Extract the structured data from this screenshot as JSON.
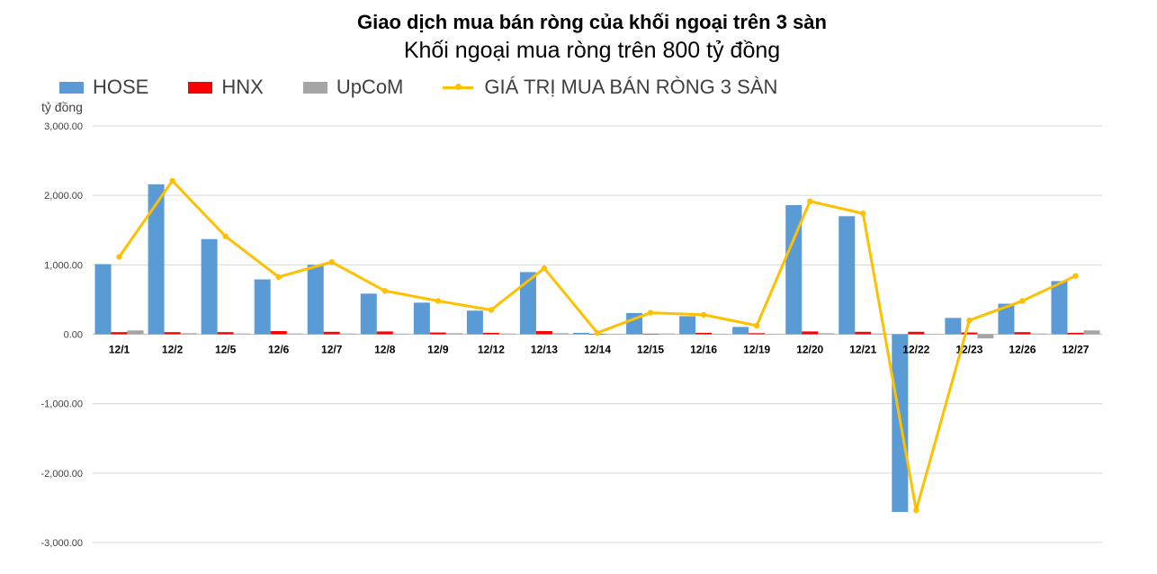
{
  "chart_data": {
    "type": "bar",
    "title": "Giao dịch mua bán ròng của khối ngoại trên 3 sàn",
    "subtitle": "Khối ngoại mua ròng trên 800 tỷ đồng",
    "ylabel": "tỷ đồng",
    "xlabel": "",
    "ylim": [
      -3000,
      3000
    ],
    "ytick_values": [
      3000,
      2000,
      1000,
      0,
      -1000,
      -2000,
      -3000
    ],
    "ytick_labels": [
      "3,000.00",
      "2,000.00",
      "1,000.00",
      "0.00",
      "-1,000.00",
      "-2,000.00",
      "-3,000.00"
    ],
    "grid": true,
    "legend_position": "top-left",
    "categories": [
      "12/1",
      "12/2",
      "12/5",
      "12/6",
      "12/7",
      "12/8",
      "12/9",
      "12/12",
      "12/13",
      "12/14",
      "12/15",
      "12/16",
      "12/19",
      "12/20",
      "12/21",
      "12/22",
      "12/23",
      "12/26",
      "12/27"
    ],
    "series": [
      {
        "name": "HOSE",
        "kind": "bar",
        "color": "#5B9BD5",
        "values": [
          1010,
          2160,
          1370,
          790,
          1000,
          585,
          455,
          340,
          895,
          20,
          305,
          260,
          105,
          1860,
          1700,
          -2560,
          235,
          440,
          765
        ]
      },
      {
        "name": "HNX",
        "kind": "bar",
        "color": "#FF0000",
        "values": [
          30,
          30,
          30,
          45,
          35,
          40,
          25,
          20,
          45,
          5,
          8,
          20,
          15,
          40,
          35,
          35,
          25,
          30,
          20
        ]
      },
      {
        "name": "UpCoM",
        "kind": "bar",
        "color": "#A5A5A5",
        "values": [
          55,
          15,
          10,
          10,
          10,
          8,
          15,
          10,
          15,
          5,
          10,
          5,
          5,
          15,
          10,
          0,
          -60,
          10,
          55
        ]
      },
      {
        "name": "GIÁ TRỊ MUA BÁN RÒNG 3 SÀN",
        "kind": "line",
        "color": "#FFC000",
        "values": [
          1115,
          2210,
          1410,
          825,
          1040,
          625,
          480,
          350,
          950,
          20,
          310,
          280,
          125,
          1915,
          1740,
          -2535,
          200,
          480,
          840
        ]
      }
    ]
  }
}
